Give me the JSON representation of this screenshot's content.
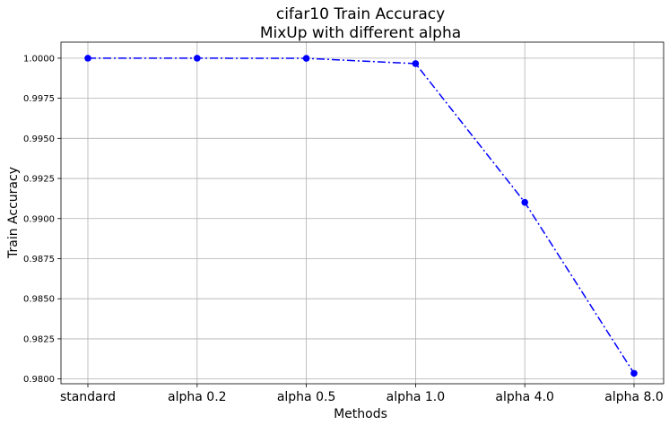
{
  "chart_data": {
    "type": "line",
    "title": "cifar10 Train Accuracy",
    "subtitle": "MixUp with different alpha",
    "xlabel": "Methods",
    "ylabel": "Train Accuracy",
    "categories": [
      "standard",
      "alpha 0.2",
      "alpha 0.5",
      "alpha 1.0",
      "alpha 4.0",
      "alpha 8.0"
    ],
    "series": [
      {
        "values": [
          1.0,
          1.0,
          0.99999,
          0.99966,
          0.99101,
          0.98035
        ],
        "color": "#0000ff",
        "line_style": "dash-dot",
        "marker": "circle"
      }
    ],
    "yticks": [
      "0.9800",
      "0.9825",
      "0.9850",
      "0.9875",
      "0.9900",
      "0.9925",
      "0.9950",
      "0.9975",
      "1.0000"
    ],
    "ylim": [
      0.9797,
      1.001
    ],
    "grid": true
  }
}
